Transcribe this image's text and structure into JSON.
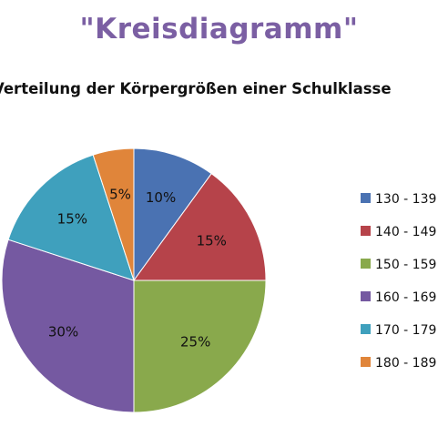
{
  "heading": "\"Kreisdiagramm\"",
  "chart_data": {
    "type": "pie",
    "title": "Verteilung der Körpergrößen einer Schulklasse",
    "legend_position": "right",
    "categories": [
      "130 - 139",
      "140 - 149",
      "150 - 159",
      "160 - 169",
      "170 - 179",
      "180 - 189"
    ],
    "values": [
      10,
      15,
      25,
      30,
      15,
      5
    ],
    "labels": [
      "10%",
      "15%",
      "25%",
      "30%",
      "15%",
      "5%"
    ],
    "colors": [
      "#4a72b2",
      "#b6434a",
      "#89a94c",
      "#7559a1",
      "#3fa0bd",
      "#e0853a"
    ]
  }
}
